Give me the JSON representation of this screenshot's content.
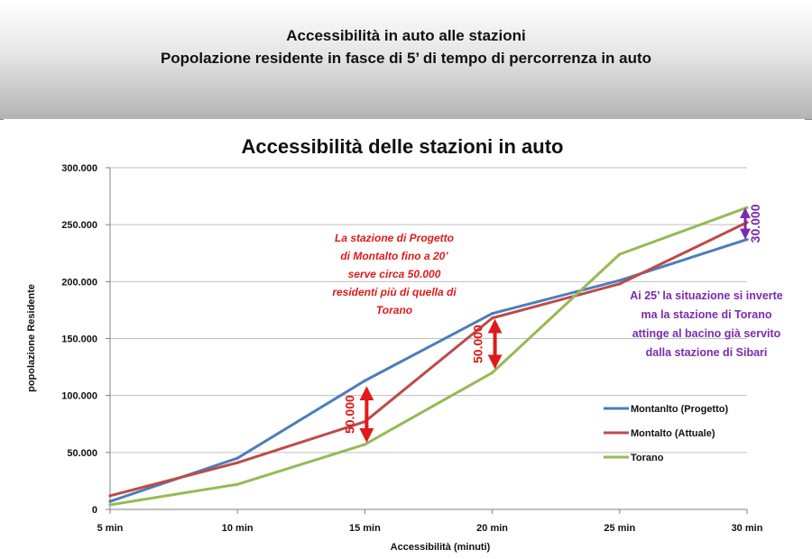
{
  "header": {
    "title": "Accessibilità in auto alle stazioni",
    "subtitle": "Popolazione residente in fasce di 5’ di tempo di percorrenza in auto"
  },
  "chart_data": {
    "type": "line",
    "title": "Accessibilità delle stazioni in auto",
    "xlabel": "Accessibilità  (minuti)",
    "ylabel": "popolazione Residente",
    "categories": [
      "5 min",
      "10 min",
      "15 min",
      "20 min",
      "25 min",
      "30 min"
    ],
    "ylim": [
      0,
      300000
    ],
    "y_ticks": [
      0,
      50000,
      100000,
      150000,
      200000,
      250000,
      300000
    ],
    "y_tick_labels": [
      "0",
      "50.000",
      "100.000",
      "150.000",
      "200.000",
      "250.000",
      "300.000"
    ],
    "grid": true,
    "legend_position": "right",
    "series": [
      {
        "name": "Montanlto (Progetto)",
        "color": "#4a7ebb",
        "values": [
          7000,
          45000,
          113000,
          172000,
          201000,
          237000
        ]
      },
      {
        "name": "Montalto (Attuale)",
        "color": "#be4b48",
        "values": [
          12000,
          41000,
          77000,
          168000,
          198000,
          252000
        ]
      },
      {
        "name": "Torano",
        "color": "#98b954",
        "values": [
          4000,
          22000,
          57000,
          120000,
          224000,
          265000
        ]
      }
    ],
    "annotations": {
      "note_red": [
        "La stazione di Progetto",
        "di  Montalto fino a 20’",
        "serve circa 50.000",
        "residenti più di quella di",
        "Torano"
      ],
      "note_purple": [
        "Ai 25’ la situazione si inverte",
        "ma la stazione di Torano",
        "attinge al bacino già servito",
        "dalla stazione di Sibari"
      ],
      "arrow_15_label": "50.000",
      "arrow_20_label": "50.000",
      "arrow_30_label": "30.000"
    }
  }
}
